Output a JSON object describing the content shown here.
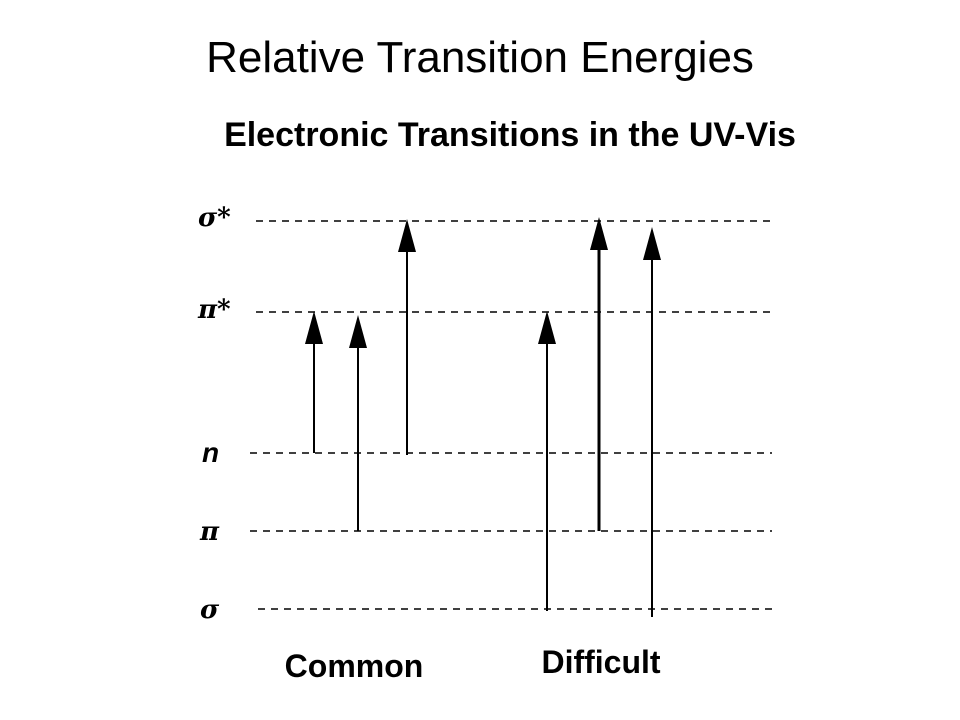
{
  "slide": {
    "title": "Relative Transition Energies"
  },
  "diagram": {
    "subtitle": "Electronic Transitions in the UV-Vis",
    "levels": [
      {
        "id": "sigma_star",
        "label": "σ*"
      },
      {
        "id": "pi_star",
        "label": "π*"
      },
      {
        "id": "n",
        "label": "n"
      },
      {
        "id": "pi",
        "label": "π"
      },
      {
        "id": "sigma",
        "label": "σ"
      }
    ],
    "groups": [
      {
        "label": "Common",
        "transitions": [
          {
            "from": "n",
            "to": "pi_star"
          },
          {
            "from": "pi",
            "to": "pi_star"
          },
          {
            "from": "n",
            "to": "sigma_star"
          }
        ]
      },
      {
        "label": "Difficult",
        "transitions": [
          {
            "from": "sigma",
            "to": "pi_star"
          },
          {
            "from": "pi",
            "to": "sigma_star"
          },
          {
            "from": "sigma",
            "to": "sigma_star"
          }
        ]
      }
    ]
  }
}
